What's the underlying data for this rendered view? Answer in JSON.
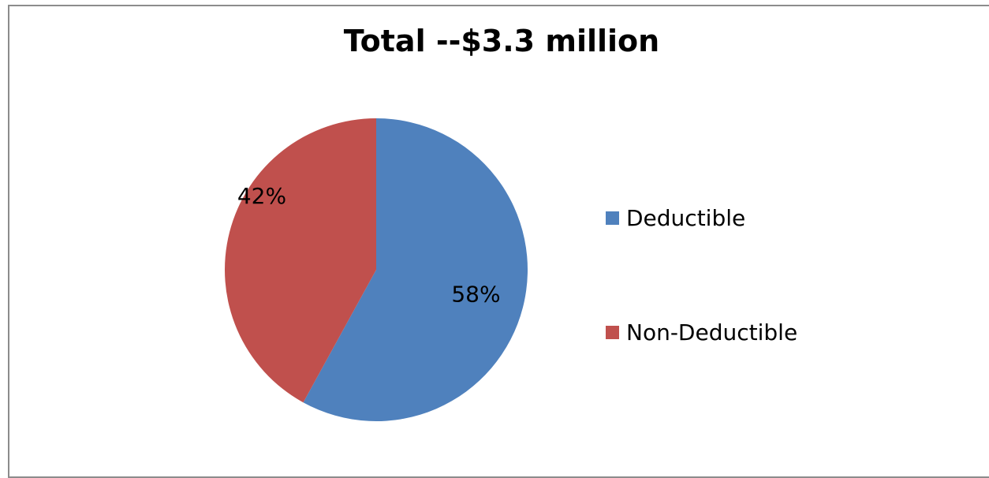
{
  "chart_data": {
    "type": "pie",
    "title": "Total --$3.3 million",
    "categories": [
      "Deductible",
      "Non-Deductible"
    ],
    "values": [
      58,
      42
    ],
    "value_labels": [
      "58%",
      "42%"
    ],
    "colors": [
      "#4f81bd",
      "#c0504d"
    ],
    "legend_position": "right"
  }
}
